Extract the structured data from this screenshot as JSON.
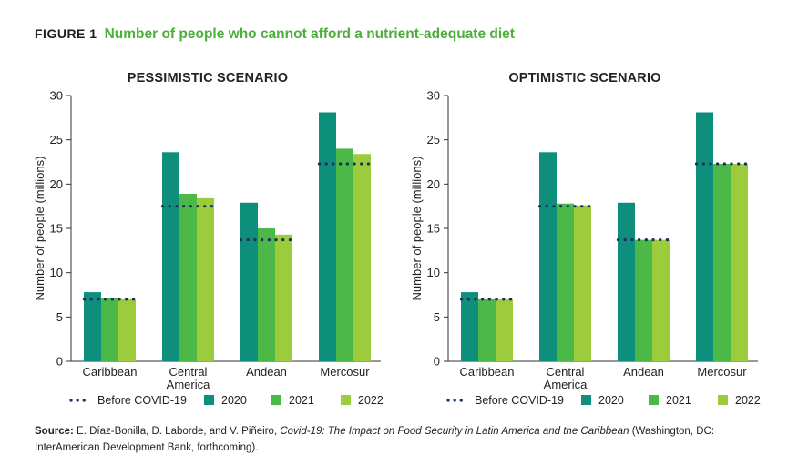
{
  "figure": {
    "label": "FIGURE 1",
    "title": "Number of people who cannot afford a nutrient-adequate diet"
  },
  "colors": {
    "y2020": "#0d8f7b",
    "y2021": "#4cb848",
    "y2022": "#9ccc3c",
    "before": "#1b2f5e",
    "title_accent": "#4caf3a"
  },
  "chart_data": [
    {
      "type": "bar",
      "title": "PESSIMISTIC SCENARIO",
      "ylabel": "Number of people (millions)",
      "xlabel": "",
      "ylim": [
        0,
        30
      ],
      "yticks": [
        0,
        5,
        10,
        15,
        20,
        25,
        30
      ],
      "categories": [
        "Caribbean",
        "Central\nAmerica",
        "Andean",
        "Mercosur"
      ],
      "series": [
        {
          "name": "2020",
          "values": [
            7.8,
            23.6,
            17.9,
            28.1
          ]
        },
        {
          "name": "2021",
          "values": [
            7.1,
            18.9,
            15.0,
            24.0
          ]
        },
        {
          "name": "2022",
          "values": [
            7.0,
            18.4,
            14.3,
            23.4
          ]
        }
      ],
      "reference": {
        "name": "Before COVID-19",
        "values": [
          7.0,
          17.5,
          13.7,
          22.3
        ]
      },
      "legend": [
        "Before COVID-19",
        "2020",
        "2021",
        "2022"
      ]
    },
    {
      "type": "bar",
      "title": "OPTIMISTIC SCENARIO",
      "ylabel": "Number of people (millions)",
      "xlabel": "",
      "ylim": [
        0,
        30
      ],
      "yticks": [
        0,
        5,
        10,
        15,
        20,
        25,
        30
      ],
      "categories": [
        "Caribbean",
        "Central\nAmerica",
        "Andean",
        "Mercosur"
      ],
      "series": [
        {
          "name": "2020",
          "values": [
            7.8,
            23.6,
            17.9,
            28.1
          ]
        },
        {
          "name": "2021",
          "values": [
            7.0,
            17.8,
            13.7,
            22.3
          ]
        },
        {
          "name": "2022",
          "values": [
            7.0,
            17.6,
            13.7,
            22.3
          ]
        }
      ],
      "reference": {
        "name": "Before COVID-19",
        "values": [
          7.0,
          17.5,
          13.7,
          22.3
        ]
      },
      "legend": [
        "Before COVID-19",
        "2020",
        "2021",
        "2022"
      ]
    }
  ],
  "source": {
    "label": "Source:",
    "authors": "E. Díaz-Bonilla, D. Laborde, and V. Piñeiro,",
    "work_title": "Covid-19: The Impact on Food Security in Latin America and the Caribbean",
    "publisher": "(Washington, DC: InterAmerican Development Bank, forthcoming)."
  }
}
